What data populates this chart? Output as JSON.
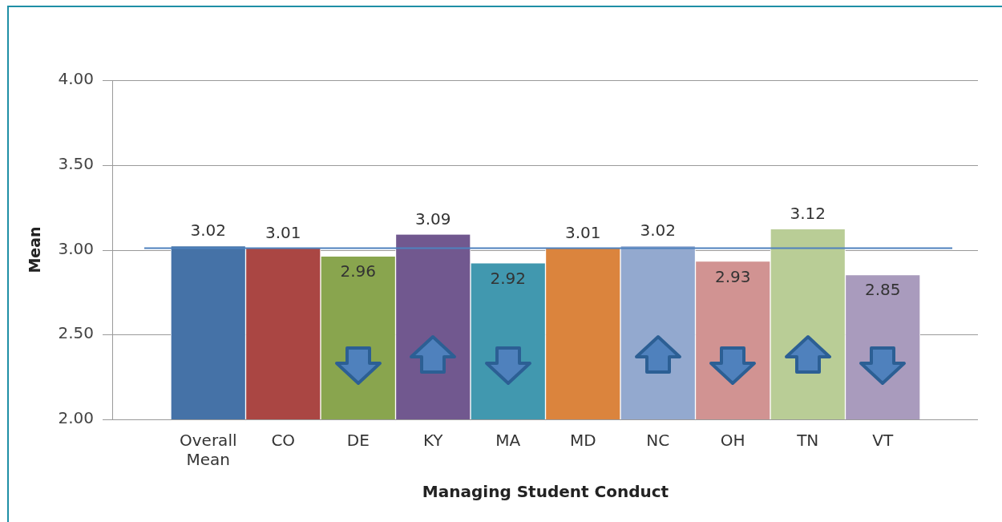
{
  "chart_data": {
    "type": "bar",
    "xlabel": "Managing Student Conduct",
    "ylabel": "Mean",
    "categories": [
      "Overall Mean",
      "CO",
      "DE",
      "KY",
      "MA",
      "MD",
      "NC",
      "OH",
      "TN",
      "VT"
    ],
    "values": [
      3.02,
      3.01,
      2.96,
      3.09,
      2.92,
      3.01,
      3.02,
      2.93,
      3.12,
      2.85
    ],
    "colors": [
      "#4572a7",
      "#aa4643",
      "#89a54e",
      "#71588f",
      "#4198af",
      "#db843d",
      "#93a9cf",
      "#d19392",
      "#b9cd96",
      "#a99bbd"
    ],
    "ylim": [
      2,
      4
    ],
    "yticks": [
      {
        "value": 2,
        "label": "2.00"
      },
      {
        "value": 2.5,
        "label": "2.50"
      },
      {
        "value": 3,
        "label": "3.00"
      },
      {
        "value": 3.5,
        "label": "3.50"
      },
      {
        "value": 4,
        "label": "4.00"
      }
    ],
    "ref_lines": [
      {
        "axis": "y",
        "value": 3.01,
        "color": "#4f81bd"
      }
    ],
    "grid": "y",
    "data_labels": true,
    "legend": false
  }
}
